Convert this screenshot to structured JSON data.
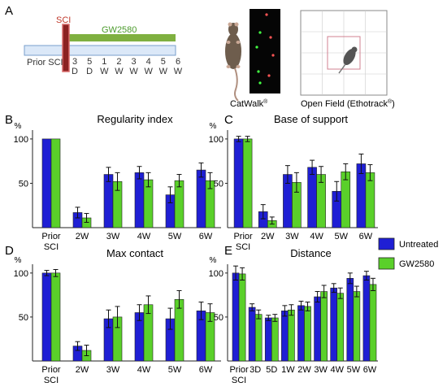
{
  "panel_letters": {
    "a": "A",
    "b": "B",
    "c": "C",
    "d": "D",
    "e": "E"
  },
  "timeline": {
    "injury_label": "SCI",
    "drug_label": "GW2580",
    "baseline_label": "Prior SCI",
    "timepoints": [
      [
        "3",
        "D"
      ],
      [
        "5",
        "D"
      ],
      [
        "1",
        "W"
      ],
      [
        "2",
        "W"
      ],
      [
        "3",
        "W"
      ],
      [
        "4",
        "W"
      ],
      [
        "5",
        "W"
      ],
      [
        "6",
        "W"
      ]
    ]
  },
  "methods": {
    "catwalk": "CatWalk",
    "catwalk_sup": "®",
    "openfield": "Open Field (Ethotrack",
    "openfield_sup": "®",
    "openfield_close": ")"
  },
  "legend": {
    "items": [
      {
        "label": "Untreated",
        "color": "#1f1fd4"
      },
      {
        "label": "GW2580",
        "color": "#5ad02a"
      }
    ]
  },
  "colors": {
    "untreated": "#1f1fd4",
    "gw2580": "#5ad02a",
    "sci_bar": "#8b2222",
    "drug_bar": "#7fb040",
    "baseline_bar": "#dbe8f8"
  },
  "chart_data": [
    {
      "type": "bar",
      "panel": "B",
      "title": "Regularity index",
      "ylabel": "%",
      "ylim": [
        0,
        110
      ],
      "yticks": [
        50,
        100
      ],
      "categories": [
        "Prior SCI",
        "2W",
        "3W",
        "4W",
        "5W",
        "6W"
      ],
      "series": [
        {
          "name": "Untreated",
          "values": [
            100,
            17,
            60,
            62,
            37,
            65
          ],
          "errors": [
            0,
            6,
            8,
            7,
            9,
            8
          ]
        },
        {
          "name": "GW2580",
          "values": [
            100,
            11,
            52,
            54,
            53,
            53
          ],
          "errors": [
            0,
            5,
            10,
            8,
            7,
            9
          ]
        }
      ]
    },
    {
      "type": "bar",
      "panel": "C",
      "title": "Base of support",
      "ylabel": "%",
      "ylim": [
        0,
        110
      ],
      "yticks": [
        50,
        100
      ],
      "categories": [
        "Prior SCI",
        "2W",
        "3W",
        "4W",
        "5W",
        "6W"
      ],
      "series": [
        {
          "name": "Untreated",
          "values": [
            100,
            18,
            60,
            68,
            41,
            72
          ],
          "errors": [
            3,
            8,
            10,
            8,
            11,
            11
          ]
        },
        {
          "name": "GW2580",
          "values": [
            100,
            8,
            51,
            60,
            63,
            62
          ],
          "errors": [
            3,
            4,
            11,
            9,
            9,
            9
          ]
        }
      ]
    },
    {
      "type": "bar",
      "panel": "D",
      "title": "Max contact",
      "ylabel": "%",
      "ylim": [
        0,
        110
      ],
      "yticks": [
        50,
        100
      ],
      "categories": [
        "Prior SCI",
        "2W",
        "3W",
        "4W",
        "5W",
        "6W"
      ],
      "series": [
        {
          "name": "Untreated",
          "values": [
            100,
            17,
            48,
            55,
            48,
            57
          ],
          "errors": [
            3,
            5,
            10,
            9,
            12,
            10
          ]
        },
        {
          "name": "GW2580",
          "values": [
            100,
            12,
            50,
            64,
            70,
            55
          ],
          "errors": [
            4,
            6,
            12,
            10,
            10,
            10
          ]
        }
      ]
    },
    {
      "type": "bar",
      "panel": "E",
      "title": "Distance",
      "ylabel": "%",
      "ylim": [
        0,
        110
      ],
      "yticks": [
        50,
        100
      ],
      "categories": [
        "Prior SCI",
        "3D",
        "5D",
        "1W",
        "2W",
        "3W",
        "4W",
        "5W",
        "6W"
      ],
      "series": [
        {
          "name": "Untreated",
          "values": [
            100,
            61,
            49,
            57,
            63,
            73,
            83,
            94,
            97
          ],
          "errors": [
            8,
            4,
            3,
            6,
            5,
            6,
            5,
            6,
            5
          ]
        },
        {
          "name": "GW2580",
          "values": [
            99,
            53,
            49,
            58,
            62,
            79,
            77,
            79,
            87
          ],
          "errors": [
            7,
            5,
            4,
            6,
            5,
            7,
            6,
            6,
            7
          ]
        }
      ]
    }
  ]
}
